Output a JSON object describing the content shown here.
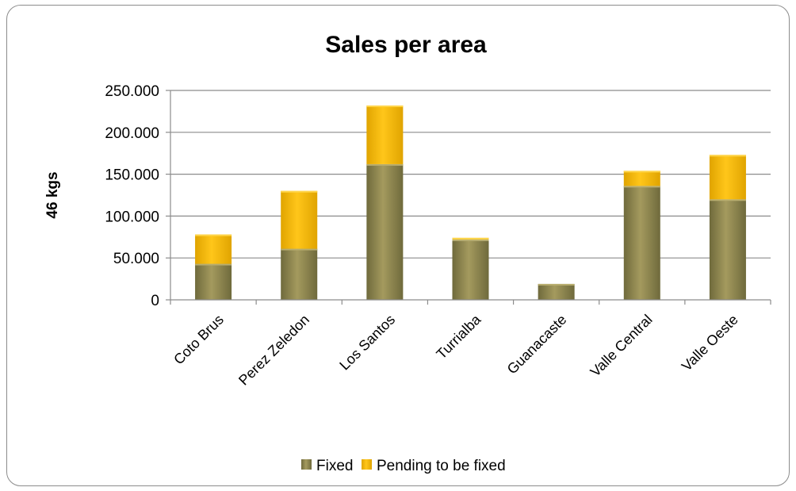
{
  "chart_data": {
    "type": "bar",
    "stacked": true,
    "title": "Sales per area",
    "xlabel": "",
    "ylabel": "46 kgs",
    "categories": [
      "Coto Brus",
      "Perez Zeledon",
      "Los Santos",
      "Turrialba",
      "Guanacaste",
      "Valle Central",
      "Valle Oeste"
    ],
    "series": [
      {
        "name": "Fixed",
        "color": "#8f8752",
        "values": [
          43000,
          61000,
          162000,
          72000,
          19000,
          136000,
          120000
        ]
      },
      {
        "name": "Pending to be fixed",
        "color": "#f5b700",
        "values": [
          35000,
          69000,
          70000,
          2000,
          0,
          18000,
          53000
        ]
      }
    ],
    "ylim": [
      0,
      250000
    ],
    "yticks": [
      0,
      50000,
      100000,
      150000,
      200000,
      250000
    ],
    "ytick_labels": [
      "0",
      "50.000",
      "100.000",
      "150.000",
      "200.000",
      "250.000"
    ],
    "grid": true,
    "legend_position": "bottom"
  }
}
